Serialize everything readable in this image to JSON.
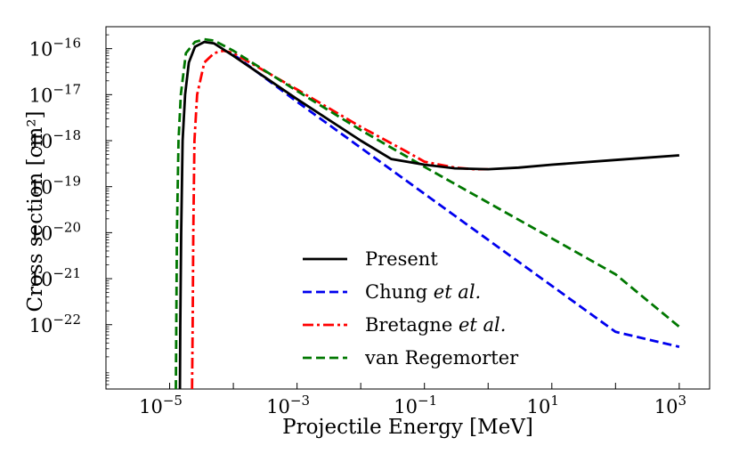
{
  "chart_data": {
    "type": "line",
    "xscale": "log",
    "yscale": "log",
    "xlim": [
      1e-06,
      3000
    ],
    "ylim": [
      4e-24,
      3e-16
    ],
    "xlabel": "Projectile Energy [MeV]",
    "ylabel": "Cross section [cm²]",
    "xticks": [
      {
        "value": 1e-05,
        "label": "10",
        "exp": "−5"
      },
      {
        "value": 0.001,
        "label": "10",
        "exp": "−3"
      },
      {
        "value": 0.1,
        "label": "10",
        "exp": "−1"
      },
      {
        "value": 10,
        "label": "10",
        "exp": "1"
      },
      {
        "value": 1000,
        "label": "10",
        "exp": "3"
      }
    ],
    "yticks": [
      {
        "value": 1e-16,
        "label": "10",
        "exp": "−16"
      },
      {
        "value": 1e-17,
        "label": "10",
        "exp": "−17"
      },
      {
        "value": 1e-18,
        "label": "10",
        "exp": "−18"
      },
      {
        "value": 1e-19,
        "label": "10",
        "exp": "−19"
      },
      {
        "value": 1e-20,
        "label": "10",
        "exp": "−20"
      },
      {
        "value": 1e-21,
        "label": "10",
        "exp": "−21"
      },
      {
        "value": 1e-22,
        "label": "10",
        "exp": "−22"
      }
    ],
    "legend_position": "lower-center",
    "series": [
      {
        "name": "Present",
        "name_parts": [
          {
            "text": "Present",
            "italic": false
          }
        ],
        "color": "#000000",
        "style": "solid",
        "points": [
          [
            1.45e-05,
            4e-24
          ],
          [
            1.47e-05,
            1e-22
          ],
          [
            1.52e-05,
            1e-20
          ],
          [
            1.6e-05,
            1e-18
          ],
          [
            1.75e-05,
            1e-17
          ],
          [
            2e-05,
            5e-17
          ],
          [
            2.5e-05,
            1.1e-16
          ],
          [
            3.5e-05,
            1.4e-16
          ],
          [
            5e-05,
            1.3e-16
          ],
          [
            0.0001,
            7e-17
          ],
          [
            0.001,
            8e-18
          ],
          [
            0.01,
            1e-18
          ],
          [
            0.03,
            4e-19
          ],
          [
            0.1,
            3e-19
          ],
          [
            0.3,
            2.5e-19
          ],
          [
            1,
            2.4e-19
          ],
          [
            3,
            2.6e-19
          ],
          [
            10,
            3e-19
          ],
          [
            100,
            3.8e-19
          ],
          [
            1000,
            4.8e-19
          ]
        ]
      },
      {
        "name": "Chung et al.",
        "name_parts": [
          {
            "text": "Chung ",
            "italic": false
          },
          {
            "text": "et al.",
            "italic": true
          }
        ],
        "color": "#0000ee",
        "style": "dashed",
        "points": [
          [
            0.0001,
            7.5e-17
          ],
          [
            0.001,
            7e-18
          ],
          [
            0.01,
            7e-19
          ],
          [
            0.1,
            7e-20
          ],
          [
            1,
            7e-21
          ],
          [
            10,
            7e-22
          ],
          [
            100,
            7e-23
          ],
          [
            1000,
            3.3e-23
          ]
        ]
      },
      {
        "name": "Bretagne et al.",
        "name_parts": [
          {
            "text": "Bretagne ",
            "italic": false
          },
          {
            "text": "et al.",
            "italic": true
          }
        ],
        "color": "#ff0000",
        "style": "dashdot",
        "points": [
          [
            2.25e-05,
            4e-24
          ],
          [
            2.3e-05,
            1e-22
          ],
          [
            2.35e-05,
            1e-20
          ],
          [
            2.45e-05,
            1e-18
          ],
          [
            2.7e-05,
            1e-17
          ],
          [
            3.5e-05,
            5e-17
          ],
          [
            5e-05,
            8e-17
          ],
          [
            7e-05,
            9e-17
          ],
          [
            0.0001,
            8e-17
          ],
          [
            0.001,
            1.3e-17
          ],
          [
            0.01,
            2e-18
          ],
          [
            0.05,
            6e-19
          ],
          [
            0.1,
            3.5e-19
          ],
          [
            0.3,
            2.6e-19
          ],
          [
            0.6,
            2.4e-19
          ],
          [
            1,
            2.4e-19
          ]
        ]
      },
      {
        "name": "van Regemorter",
        "name_parts": [
          {
            "text": "van Regemorter",
            "italic": false
          }
        ],
        "color": "#007700",
        "style": "dashed",
        "points": [
          [
            1.25e-05,
            4e-24
          ],
          [
            1.27e-05,
            1e-22
          ],
          [
            1.3e-05,
            1e-20
          ],
          [
            1.38e-05,
            1e-18
          ],
          [
            1.5e-05,
            1e-17
          ],
          [
            1.8e-05,
            8e-17
          ],
          [
            2.5e-05,
            1.4e-16
          ],
          [
            3.5e-05,
            1.6e-16
          ],
          [
            5e-05,
            1.5e-16
          ],
          [
            0.0001,
            9e-17
          ],
          [
            0.001,
            1.2e-17
          ],
          [
            0.01,
            1.7e-18
          ],
          [
            0.1,
            2.7e-19
          ],
          [
            1,
            4.5e-20
          ],
          [
            10,
            7.5e-21
          ],
          [
            100,
            1.25e-21
          ],
          [
            1000,
            9e-23
          ]
        ]
      }
    ]
  }
}
